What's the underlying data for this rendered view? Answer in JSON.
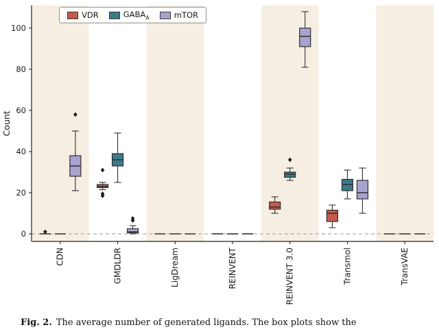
{
  "figure": {
    "caption": {
      "label": "Fig. 2.",
      "text": "The average number of generated ligands. The box plots show the"
    }
  },
  "chart_data": {
    "type": "boxplot",
    "title": "",
    "xlabel": "",
    "ylabel": "Count",
    "ylim": [
      -5,
      112
    ],
    "yticks": [
      0,
      20,
      40,
      60,
      80,
      100
    ],
    "grid": "zero-line-dashed",
    "legend_position": "upper left",
    "band_stripe_color": "#f6eee2",
    "band_plain_color": "#ffffff",
    "box_edge_color": "#2f2f2f",
    "flier_color": "#1a1a1a",
    "categories": [
      "CDN",
      "GMDLDR",
      "LigDream",
      "REINVENT",
      "REINVENT 3.0",
      "Transmol",
      "TransVAE"
    ],
    "series": [
      {
        "name": "VDR",
        "sub": "",
        "color": "#c25b4e",
        "boxes": [
          {
            "whislo": 0,
            "q1": 0,
            "med": 0,
            "q3": 0,
            "whishi": 0,
            "fliers": [
              1
            ]
          },
          {
            "whislo": 21.5,
            "q1": 22.5,
            "med": 23,
            "q3": 24,
            "whishi": 25,
            "fliers": [
              18.5,
              19.5,
              31
            ]
          },
          {
            "whislo": 0,
            "q1": 0,
            "med": 0,
            "q3": 0,
            "whishi": 0,
            "fliers": []
          },
          {
            "whislo": 0,
            "q1": 0,
            "med": 0,
            "q3": 0,
            "whishi": 0,
            "fliers": []
          },
          {
            "whislo": 10,
            "q1": 12,
            "med": 13,
            "q3": 15.5,
            "whishi": 18,
            "fliers": []
          },
          {
            "whislo": 3,
            "q1": 6,
            "med": 10,
            "q3": 11.5,
            "whishi": 14,
            "fliers": []
          },
          {
            "whislo": 0,
            "q1": 0,
            "med": 0,
            "q3": 0,
            "whishi": 0,
            "fliers": []
          }
        ]
      },
      {
        "name": "GABA",
        "sub": "A",
        "color": "#3d7a8a",
        "boxes": [
          {
            "whislo": 0,
            "q1": 0,
            "med": 0,
            "q3": 0,
            "whishi": 0,
            "fliers": []
          },
          {
            "whislo": 25,
            "q1": 33,
            "med": 36,
            "q3": 39,
            "whishi": 49,
            "fliers": []
          },
          {
            "whislo": 0,
            "q1": 0,
            "med": 0,
            "q3": 0,
            "whishi": 0,
            "fliers": []
          },
          {
            "whislo": 0,
            "q1": 0,
            "med": 0,
            "q3": 0,
            "whishi": 0,
            "fliers": []
          },
          {
            "whislo": 26,
            "q1": 27.5,
            "med": 29,
            "q3": 30,
            "whishi": 32,
            "fliers": [
              36
            ]
          },
          {
            "whislo": 17,
            "q1": 21,
            "med": 24,
            "q3": 26.5,
            "whishi": 31,
            "fliers": []
          },
          {
            "whislo": 0,
            "q1": 0,
            "med": 0,
            "q3": 0,
            "whishi": 0,
            "fliers": []
          }
        ]
      },
      {
        "name": "mTOR",
        "sub": "",
        "color": "#a8a2ce",
        "boxes": [
          {
            "whislo": 21,
            "q1": 28,
            "med": 33,
            "q3": 38,
            "whishi": 50,
            "fliers": [
              58
            ]
          },
          {
            "whislo": 0,
            "q1": 0.5,
            "med": 1,
            "q3": 2.5,
            "whishi": 4,
            "fliers": [
              6.5,
              7.5
            ]
          },
          {
            "whislo": 0,
            "q1": 0,
            "med": 0,
            "q3": 0,
            "whishi": 0,
            "fliers": []
          },
          {
            "whislo": 0,
            "q1": 0,
            "med": 0,
            "q3": 0,
            "whishi": 0,
            "fliers": []
          },
          {
            "whislo": 81,
            "q1": 91,
            "med": 96,
            "q3": 100,
            "whishi": 108,
            "fliers": []
          },
          {
            "whislo": 10,
            "q1": 17,
            "med": 20,
            "q3": 26,
            "whishi": 32,
            "fliers": []
          },
          {
            "whislo": 0,
            "q1": 0,
            "med": 0,
            "q3": 0,
            "whishi": 0,
            "fliers": []
          }
        ]
      }
    ]
  }
}
